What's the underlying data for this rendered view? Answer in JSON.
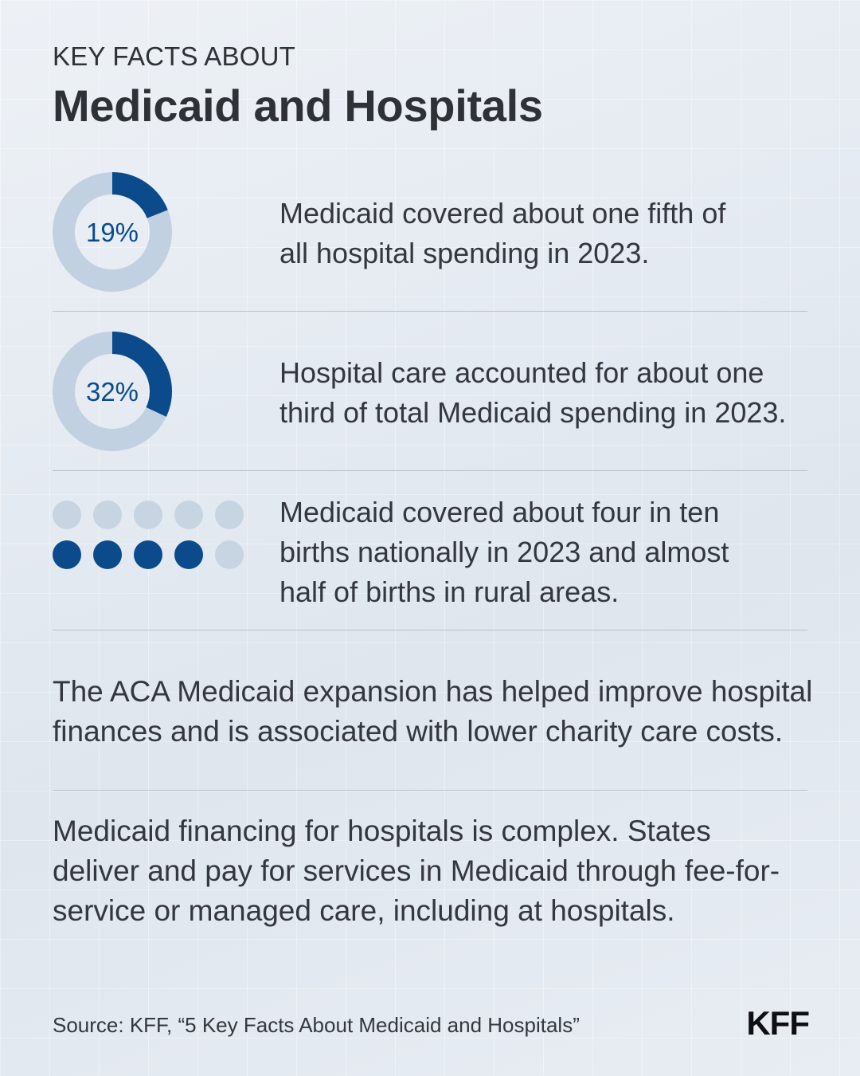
{
  "header": {
    "kicker": "KEY FACTS ABOUT",
    "title": "Medicaid and Hospitals"
  },
  "facts": [
    {
      "value_label": "19%",
      "value": 19,
      "text_line1": "Medicaid covered about one fifth of",
      "text_line2": "all hospital spending in 2023."
    },
    {
      "value_label": "32%",
      "value": 32,
      "text_line1": "Hospital care accounted for about one",
      "text_line2": "third of total Medicaid spending in 2023."
    },
    {
      "dots_total": 10,
      "dots_filled": 4,
      "text_line1": "Medicaid covered about four in ten",
      "text_line2": "births nationally in 2023 and almost",
      "text_line3": "half of births in rural areas."
    }
  ],
  "paragraphs": {
    "aca_line1": "The ACA Medicaid expansion has helped improve hospital",
    "aca_line2": "finances and is associated with lower charity care costs.",
    "financing_line1": "Medicaid financing for hospitals is complex. States",
    "financing_line2": "deliver and pay for services in Medicaid through fee-for-",
    "financing_line3": "service or managed care, including at hospitals."
  },
  "footer": {
    "source": "Source: KFF, “5 Key Facts About Medicaid and Hospitals”",
    "logo": "KFF"
  },
  "colors": {
    "accent": "#0b4a8b",
    "track": "#c2d1e1",
    "dot_empty": "#c7d4e2"
  }
}
